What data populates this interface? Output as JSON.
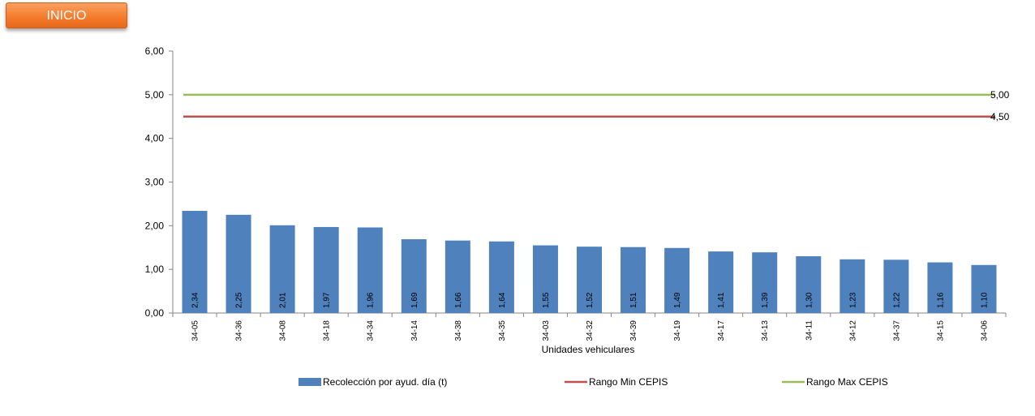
{
  "header": {
    "inicio_label": "INICIO"
  },
  "colors": {
    "bar": "#4f81bd",
    "min_line": "#c0504d",
    "max_line": "#9bbb59",
    "button": "#f47a2a"
  },
  "chart_data": {
    "type": "bar",
    "xlabel": "Unidades vehiculares",
    "ylim": [
      0,
      6
    ],
    "yticks": [
      "0,00",
      "1,00",
      "2,00",
      "3,00",
      "4,00",
      "5,00",
      "6,00"
    ],
    "grid": false,
    "legend_position": "bottom",
    "categories": [
      "34-05",
      "34-36",
      "34-08",
      "34-18",
      "34-34",
      "34-14",
      "34-38",
      "34-35",
      "34-03",
      "34-32",
      "34-39",
      "34-19",
      "34-17",
      "34-13",
      "34-11",
      "34-12",
      "34-37",
      "34-15",
      "34-06"
    ],
    "series": [
      {
        "name": "Recolección por ayud. día (t)",
        "type": "bar",
        "values": [
          2.34,
          2.25,
          2.01,
          1.97,
          1.96,
          1.69,
          1.66,
          1.64,
          1.55,
          1.52,
          1.51,
          1.49,
          1.41,
          1.39,
          1.3,
          1.23,
          1.22,
          1.16,
          1.1
        ],
        "labels": [
          "2,34",
          "2,25",
          "2,01",
          "1,97",
          "1,96",
          "1,69",
          "1,66",
          "1,64",
          "1,55",
          "1,52",
          "1,51",
          "1,49",
          "1,41",
          "1,39",
          "1,30",
          "1,23",
          "1,22",
          "1,16",
          "1,10"
        ]
      },
      {
        "name": "Rango Min CEPIS",
        "type": "line",
        "value": 4.5,
        "label": "4,50"
      },
      {
        "name": "Rango Max CEPIS",
        "type": "line",
        "value": 5.0,
        "label": "5,00"
      }
    ]
  }
}
